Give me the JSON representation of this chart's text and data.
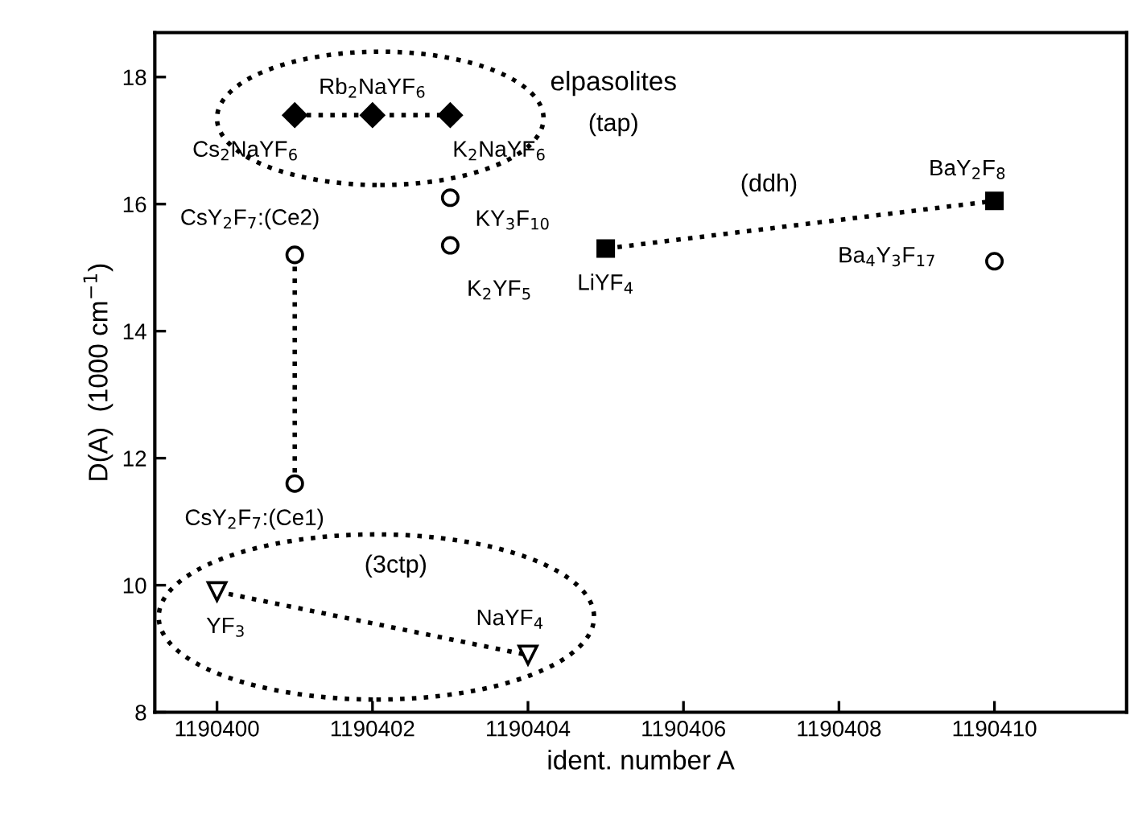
{
  "chart_data": {
    "type": "scatter",
    "xlabel": "ident. number A",
    "ylabel": "D(A)  (1000 cm$^{−1}$)",
    "xlim": [
      1190399.2,
      1190411.7
    ],
    "xticks": [
      1190400,
      1190402,
      1190404,
      1190406,
      1190408,
      1190410
    ],
    "ylim": [
      8,
      18.7
    ],
    "yticks": [
      8,
      10,
      12,
      14,
      16,
      18
    ],
    "grid": false,
    "series": [
      {
        "type": "line",
        "marker": "diamond",
        "line_style": "dotted",
        "color": "#000000",
        "x": [
          1190401,
          1190402,
          1190403
        ],
        "values": [
          17.4,
          17.4,
          17.4
        ]
      },
      {
        "type": "line",
        "marker": "square",
        "line_style": "dotted",
        "color": "#000000",
        "x": [
          1190405,
          1190410
        ],
        "values": [
          15.3,
          16.05
        ]
      },
      {
        "type": "line",
        "marker": "circle",
        "line_style": "dotted",
        "color": "#000000",
        "x": [
          1190401,
          1190401
        ],
        "values": [
          15.2,
          11.6
        ]
      },
      {
        "type": "line",
        "marker": "triangle",
        "line_style": "dotted",
        "color": "#000000",
        "x": [
          1190400,
          1190404
        ],
        "values": [
          9.9,
          8.9
        ]
      },
      {
        "marker": "circle",
        "color": "#000000",
        "x": [
          1190403,
          1190403,
          1190410
        ],
        "values": [
          16.1,
          15.35,
          15.1
        ]
      }
    ],
    "annotations": [
      {
        "text": "Cs$_{2}$NaYF$_{6}$",
        "x": 1190401,
        "y": 17.4
      },
      {
        "text": "Rb$_{2}$NaYF$_{6}$",
        "x": 1190402,
        "y": 17.4
      },
      {
        "text": "K$_{2}$NaYF$_{6}$",
        "x": 1190403,
        "y": 17.4
      },
      {
        "text": "KY$_{3}$F$_{10}$",
        "x": 1190403,
        "y": 16.1
      },
      {
        "text": "K$_{2}$YF$_{5}$",
        "x": 1190403,
        "y": 15.35
      },
      {
        "text": "CsY$_{2}$F$_{7}$:(Ce2)",
        "x": 1190401,
        "y": 15.2
      },
      {
        "text": "CsY$_{2}$F$_{7}$:(Ce1)",
        "x": 1190401,
        "y": 11.6
      },
      {
        "text": "LiYF$_{4}$",
        "x": 1190405,
        "y": 15.3
      },
      {
        "text": "BaY$_{2}$F$_{8}$",
        "x": 1190410,
        "y": 16.05
      },
      {
        "text": "Ba$_{4}$Y$_{3}$F$_{17}$",
        "x": 1190410,
        "y": 15.1
      },
      {
        "text": "YF$_{3}$",
        "x": 1190400,
        "y": 9.9
      },
      {
        "text": "NaYF$_{4}$",
        "x": 1190404,
        "y": 8.9
      },
      "elpasolites",
      "(tap)",
      "(ddh)",
      "(3ctp)"
    ]
  }
}
